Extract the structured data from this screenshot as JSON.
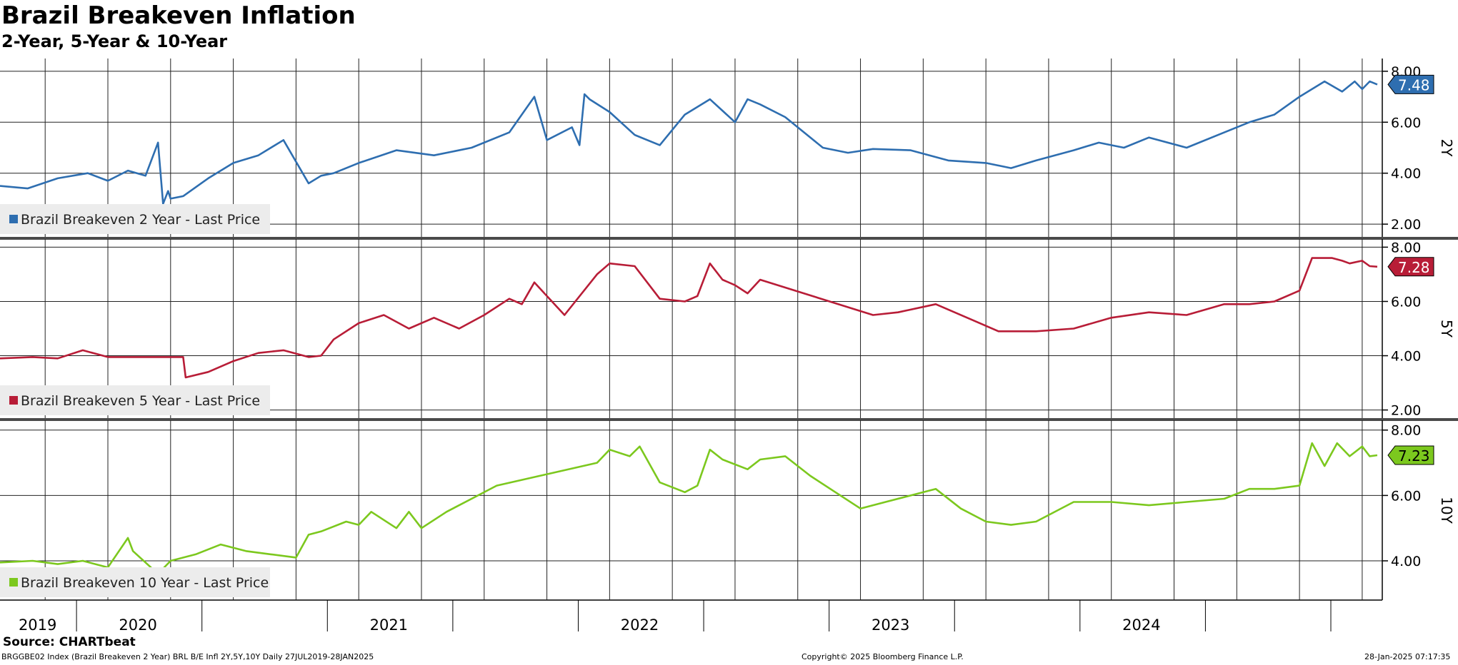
{
  "title": "Brazil Breakeven Inflation",
  "subtitle": "2-Year, 5-Year & 10-Year",
  "source": "Source: CHARTbeat",
  "footer": {
    "left": "BRGGBE02 Index (Brazil Breakeven 2 Year) BRL B/E Infl 2Y,5Y,10Y  Daily 27JUL2019-28JAN2025",
    "center": "Copyright© 2025 Bloomberg Finance L.P.",
    "right": "28-Jan-2025 07:17:35"
  },
  "chart_data": {
    "type": "line",
    "x_labels": [
      "2019",
      "2020",
      "2021",
      "2022",
      "2023",
      "2024"
    ],
    "x_range": [
      2019.57,
      2025.08
    ],
    "grid": true,
    "panels": [
      {
        "axis_label": "2Y",
        "ylim": [
          1.5,
          8.5
        ],
        "yticks": [
          "8.00",
          "6.00",
          "4.00",
          "2.00"
        ],
        "series": [
          {
            "name": "Brazil Breakeven 2 Year - Last Price",
            "color": "#2e6eb0",
            "last_value": "7.48",
            "x": [
              2019.57,
              2019.68,
              2019.8,
              2019.92,
              2020.0,
              2020.08,
              2020.15,
              2020.2,
              2020.22,
              2020.24,
              2020.25,
              2020.3,
              2020.4,
              2020.5,
              2020.6,
              2020.7,
              2020.8,
              2020.85,
              2020.9,
              2021.0,
              2021.15,
              2021.3,
              2021.45,
              2021.6,
              2021.7,
              2021.75,
              2021.85,
              2021.88,
              2021.9,
              2021.92,
              2022.0,
              2022.1,
              2022.2,
              2022.3,
              2022.4,
              2022.5,
              2022.55,
              2022.6,
              2022.7,
              2022.85,
              2022.95,
              2023.05,
              2023.2,
              2023.35,
              2023.5,
              2023.6,
              2023.7,
              2023.85,
              2023.95,
              2024.05,
              2024.15,
              2024.3,
              2024.45,
              2024.55,
              2024.65,
              2024.75,
              2024.85,
              2024.92,
              2024.97,
              2025.0,
              2025.03,
              2025.06
            ],
            "y": [
              3.5,
              3.4,
              3.8,
              4.0,
              3.7,
              4.1,
              3.9,
              5.2,
              2.8,
              3.3,
              3.0,
              3.1,
              3.8,
              4.4,
              4.7,
              5.3,
              3.6,
              3.9,
              4.0,
              4.4,
              4.9,
              4.7,
              5.0,
              5.6,
              7.0,
              5.3,
              5.8,
              5.1,
              7.1,
              6.9,
              6.4,
              5.5,
              5.1,
              6.3,
              6.9,
              6.0,
              6.9,
              6.7,
              6.2,
              5.0,
              4.8,
              4.95,
              4.9,
              4.5,
              4.4,
              4.2,
              4.5,
              4.9,
              5.2,
              5.0,
              5.4,
              5.0,
              5.6,
              6.0,
              6.3,
              7.0,
              7.6,
              7.2,
              7.6,
              7.3,
              7.6,
              7.48
            ]
          }
        ]
      },
      {
        "axis_label": "5Y",
        "ylim": [
          1.7,
          8.3
        ],
        "yticks": [
          "8.00",
          "6.00",
          "4.00",
          "2.00"
        ],
        "series": [
          {
            "name": "Brazil Breakeven 5 Year - Last Price",
            "color": "#b81d37",
            "last_value": "7.28",
            "x": [
              2019.57,
              2019.7,
              2019.8,
              2019.9,
              2020.0,
              2020.1,
              2020.2,
              2020.3,
              2020.31,
              2020.4,
              2020.5,
              2020.6,
              2020.7,
              2020.8,
              2020.85,
              2020.9,
              2021.0,
              2021.1,
              2021.2,
              2021.3,
              2021.4,
              2021.5,
              2021.6,
              2021.65,
              2021.7,
              2021.75,
              2021.82,
              2021.95,
              2022.0,
              2022.1,
              2022.2,
              2022.3,
              2022.35,
              2022.4,
              2022.45,
              2022.5,
              2022.55,
              2022.6,
              2023.05,
              2023.15,
              2023.3,
              2023.45,
              2023.55,
              2023.7,
              2023.85,
              2024.0,
              2024.15,
              2024.3,
              2024.45,
              2024.55,
              2024.65,
              2024.75,
              2024.8,
              2024.88,
              2024.92,
              2024.95,
              2025.0,
              2025.03,
              2025.06
            ],
            "y": [
              3.9,
              3.95,
              3.9,
              4.2,
              3.95,
              3.95,
              3.95,
              3.95,
              3.2,
              3.4,
              3.8,
              4.1,
              4.2,
              3.95,
              4.0,
              4.6,
              5.2,
              5.5,
              5.0,
              5.4,
              5.0,
              5.5,
              6.1,
              5.9,
              6.7,
              6.2,
              5.5,
              7.0,
              7.4,
              7.3,
              6.1,
              6.0,
              6.2,
              7.4,
              6.8,
              6.6,
              6.3,
              6.8,
              5.5,
              5.6,
              5.9,
              5.3,
              4.9,
              4.9,
              5.0,
              5.4,
              5.6,
              5.5,
              5.9,
              5.9,
              6.0,
              6.4,
              7.6,
              7.6,
              7.5,
              7.4,
              7.5,
              7.3,
              7.28
            ]
          }
        ]
      },
      {
        "axis_label": "10Y",
        "ylim": [
          2.8,
          8.3
        ],
        "yticks": [
          "8.00",
          "6.00",
          "4.00"
        ],
        "series": [
          {
            "name": "Brazil Breakeven 10 Year - Last Price",
            "color": "#7cc81e",
            "last_value": "7.23",
            "x": [
              2019.57,
              2019.7,
              2019.8,
              2019.9,
              2020.0,
              2020.08,
              2020.1,
              2020.2,
              2020.25,
              2020.35,
              2020.45,
              2020.55,
              2020.65,
              2020.75,
              2020.8,
              2020.85,
              2020.95,
              2021.0,
              2021.05,
              2021.15,
              2021.2,
              2021.25,
              2021.35,
              2021.45,
              2021.55,
              2021.95,
              2022.0,
              2022.08,
              2022.12,
              2022.2,
              2022.3,
              2022.35,
              2022.4,
              2022.45,
              2022.55,
              2022.6,
              2022.7,
              2022.8,
              2022.9,
              2023.0,
              2023.1,
              2023.2,
              2023.3,
              2023.4,
              2023.5,
              2023.6,
              2023.7,
              2023.85,
              2024.0,
              2024.15,
              2024.3,
              2024.45,
              2024.55,
              2024.65,
              2024.75,
              2024.8,
              2024.85,
              2024.9,
              2024.95,
              2025.0,
              2025.03,
              2025.06
            ],
            "y": [
              3.95,
              4.0,
              3.9,
              4.0,
              3.8,
              4.7,
              4.3,
              3.6,
              4.0,
              4.2,
              4.5,
              4.3,
              4.2,
              4.1,
              4.8,
              4.9,
              5.2,
              5.1,
              5.5,
              5.0,
              5.5,
              5.0,
              5.5,
              5.9,
              6.3,
              7.0,
              7.4,
              7.2,
              7.5,
              6.4,
              6.1,
              6.3,
              7.4,
              7.1,
              6.8,
              7.1,
              7.2,
              6.6,
              6.1,
              5.6,
              5.8,
              6.0,
              6.2,
              5.6,
              5.2,
              5.1,
              5.2,
              5.8,
              5.8,
              5.7,
              5.8,
              5.9,
              6.2,
              6.2,
              6.3,
              7.6,
              6.9,
              7.6,
              7.2,
              7.5,
              7.2,
              7.23
            ]
          }
        ]
      }
    ]
  }
}
